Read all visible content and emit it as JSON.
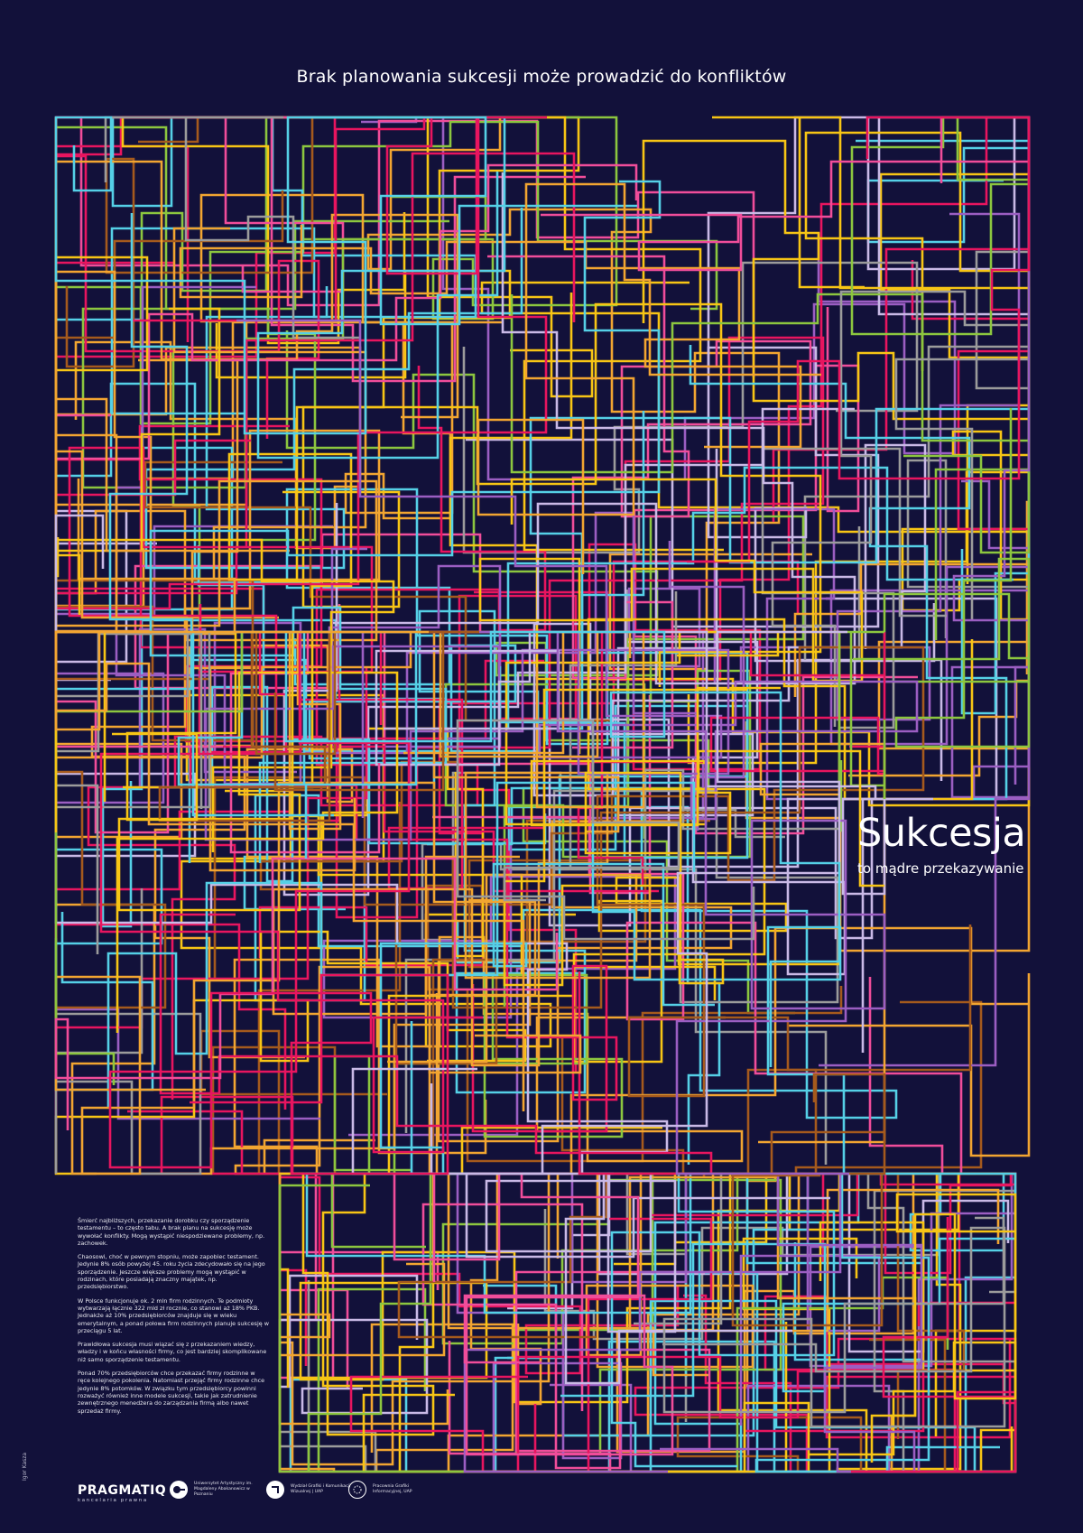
{
  "poster": {
    "top_title": "Brak planowania sukcesji może prowadzić do konfliktów",
    "hero_title": "Sukcesja",
    "hero_subtitle": "to mądre przekazywanie",
    "background": "#12113a"
  },
  "line_colors": [
    "#e8155f",
    "#f2a531",
    "#f7c515",
    "#55d0e6",
    "#8cc63f",
    "#9b5ec2",
    "#a55a1d",
    "#c9b9e6",
    "#f04d9a",
    "#9b9b9b",
    "#e8155f",
    "#f7c515",
    "#55d0e6",
    "#f2a531"
  ],
  "body_paragraphs": [
    "Śmierć najbliższych, przekazanie dorobku czy sporządzenie testamentu – to często tabu. A brak planu na sukcesję może wywołać konflikty. Mogą wystąpić niespodziewane problemy, np. zachowek.",
    "Chaosowi, choć w pewnym stopniu, może zapobiec testament. Jedynie 8% osób powyżej 45. roku życia zdecydowało się na jego sporządzenie. Jeszcze większe problemy mogą wystąpić w rodzinach, które posiadają znaczny majątek, np. przedsiębiorstwo.",
    "W Polsce funkcjonuje ok. 2 mln firm rodzinnych. Te podmioty wytwarzają łącznie 322 mld zł rocznie, co stanowi aż 18% PKB. Jednakże aż 10% przedsiębiorców znajduje się w wieku emerytalnym, a ponad połowa firm rodzinnych planuje sukcesję w przeciągu 5 lat.",
    "Prawidłowa sukcesja musi wiązać się z przekazaniem wiedzy, władzy i w końcu własności firmy, co jest bardziej skomplikowane niż samo sporządzenie testamentu.",
    "Ponad 70% przedsiębiorców chce przekazać firmy rodzinne w ręce kolejnego pokolenia. Natomiast przejąć firmy rodzinne chce jedynie 8% potomków. W związku tym przedsiębiorcy powinni rozważyć również inne modele sukcesji, takie jak zatrudnienie zewnętrznego menedżera do zarządzania firmą albo nawet sprzedaż firmy."
  ],
  "footer": {
    "brand": "PRAGMATIQ",
    "brand_tagline": "kancelaria prawna",
    "uni": "Uniwersytet Artystyczny im. Magdaleny Abakanowicz w Poznaniu",
    "faculty": "Wydział Grafiki i Komunikacji Wizualnej | UAP",
    "studio": "Pracownia Grafiki Informacyjnej, UAP",
    "credit": "Igor Kasza"
  }
}
